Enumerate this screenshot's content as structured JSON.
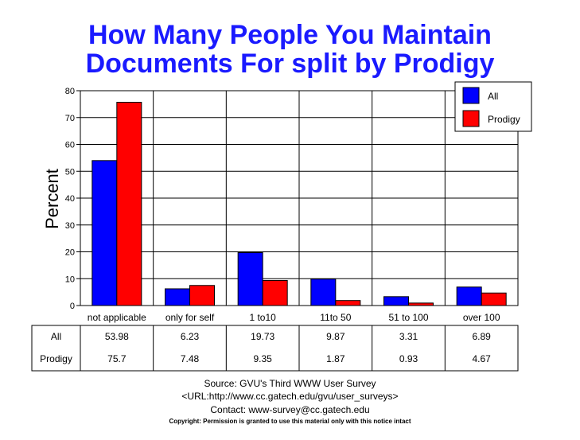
{
  "title_lines": [
    "How Many People You Maintain",
    "Documents For split by Prodigy"
  ],
  "footer": {
    "source": "Source: GVU's Third WWW User Survey",
    "url": "<URL:http://www.cc.gatech.edu/gvu/user_surveys>",
    "contact": "Contact: www-survey@cc.gatech.edu",
    "copyright": "Copyright: Permission is granted to use this material only with this notice intact"
  },
  "chart_data": {
    "type": "bar",
    "title": "How Many People You Maintain Documents For split by Prodigy",
    "ylabel": "Percent",
    "ylim": [
      0,
      80
    ],
    "yticks": [
      0,
      10,
      20,
      30,
      40,
      50,
      60,
      70,
      80
    ],
    "grid": true,
    "legend_position": "top-right",
    "categories": [
      "not applicable",
      "only for self",
      "1 to10",
      "11to 50",
      "51 to 100",
      "over 100"
    ],
    "series": [
      {
        "name": "All",
        "color": "#0000ff",
        "values": [
          53.98,
          6.23,
          19.73,
          9.87,
          3.31,
          6.89
        ],
        "labels": [
          "53.98",
          "6.23",
          "19.73",
          "9.87",
          "3.31",
          "6.89"
        ]
      },
      {
        "name": "Prodigy",
        "color": "#ff0000",
        "values": [
          75.7,
          7.48,
          9.35,
          1.87,
          0.93,
          4.67
        ],
        "labels": [
          "75.7",
          "7.48",
          "9.35",
          "1.87",
          "0.93",
          "4.67"
        ]
      }
    ]
  }
}
